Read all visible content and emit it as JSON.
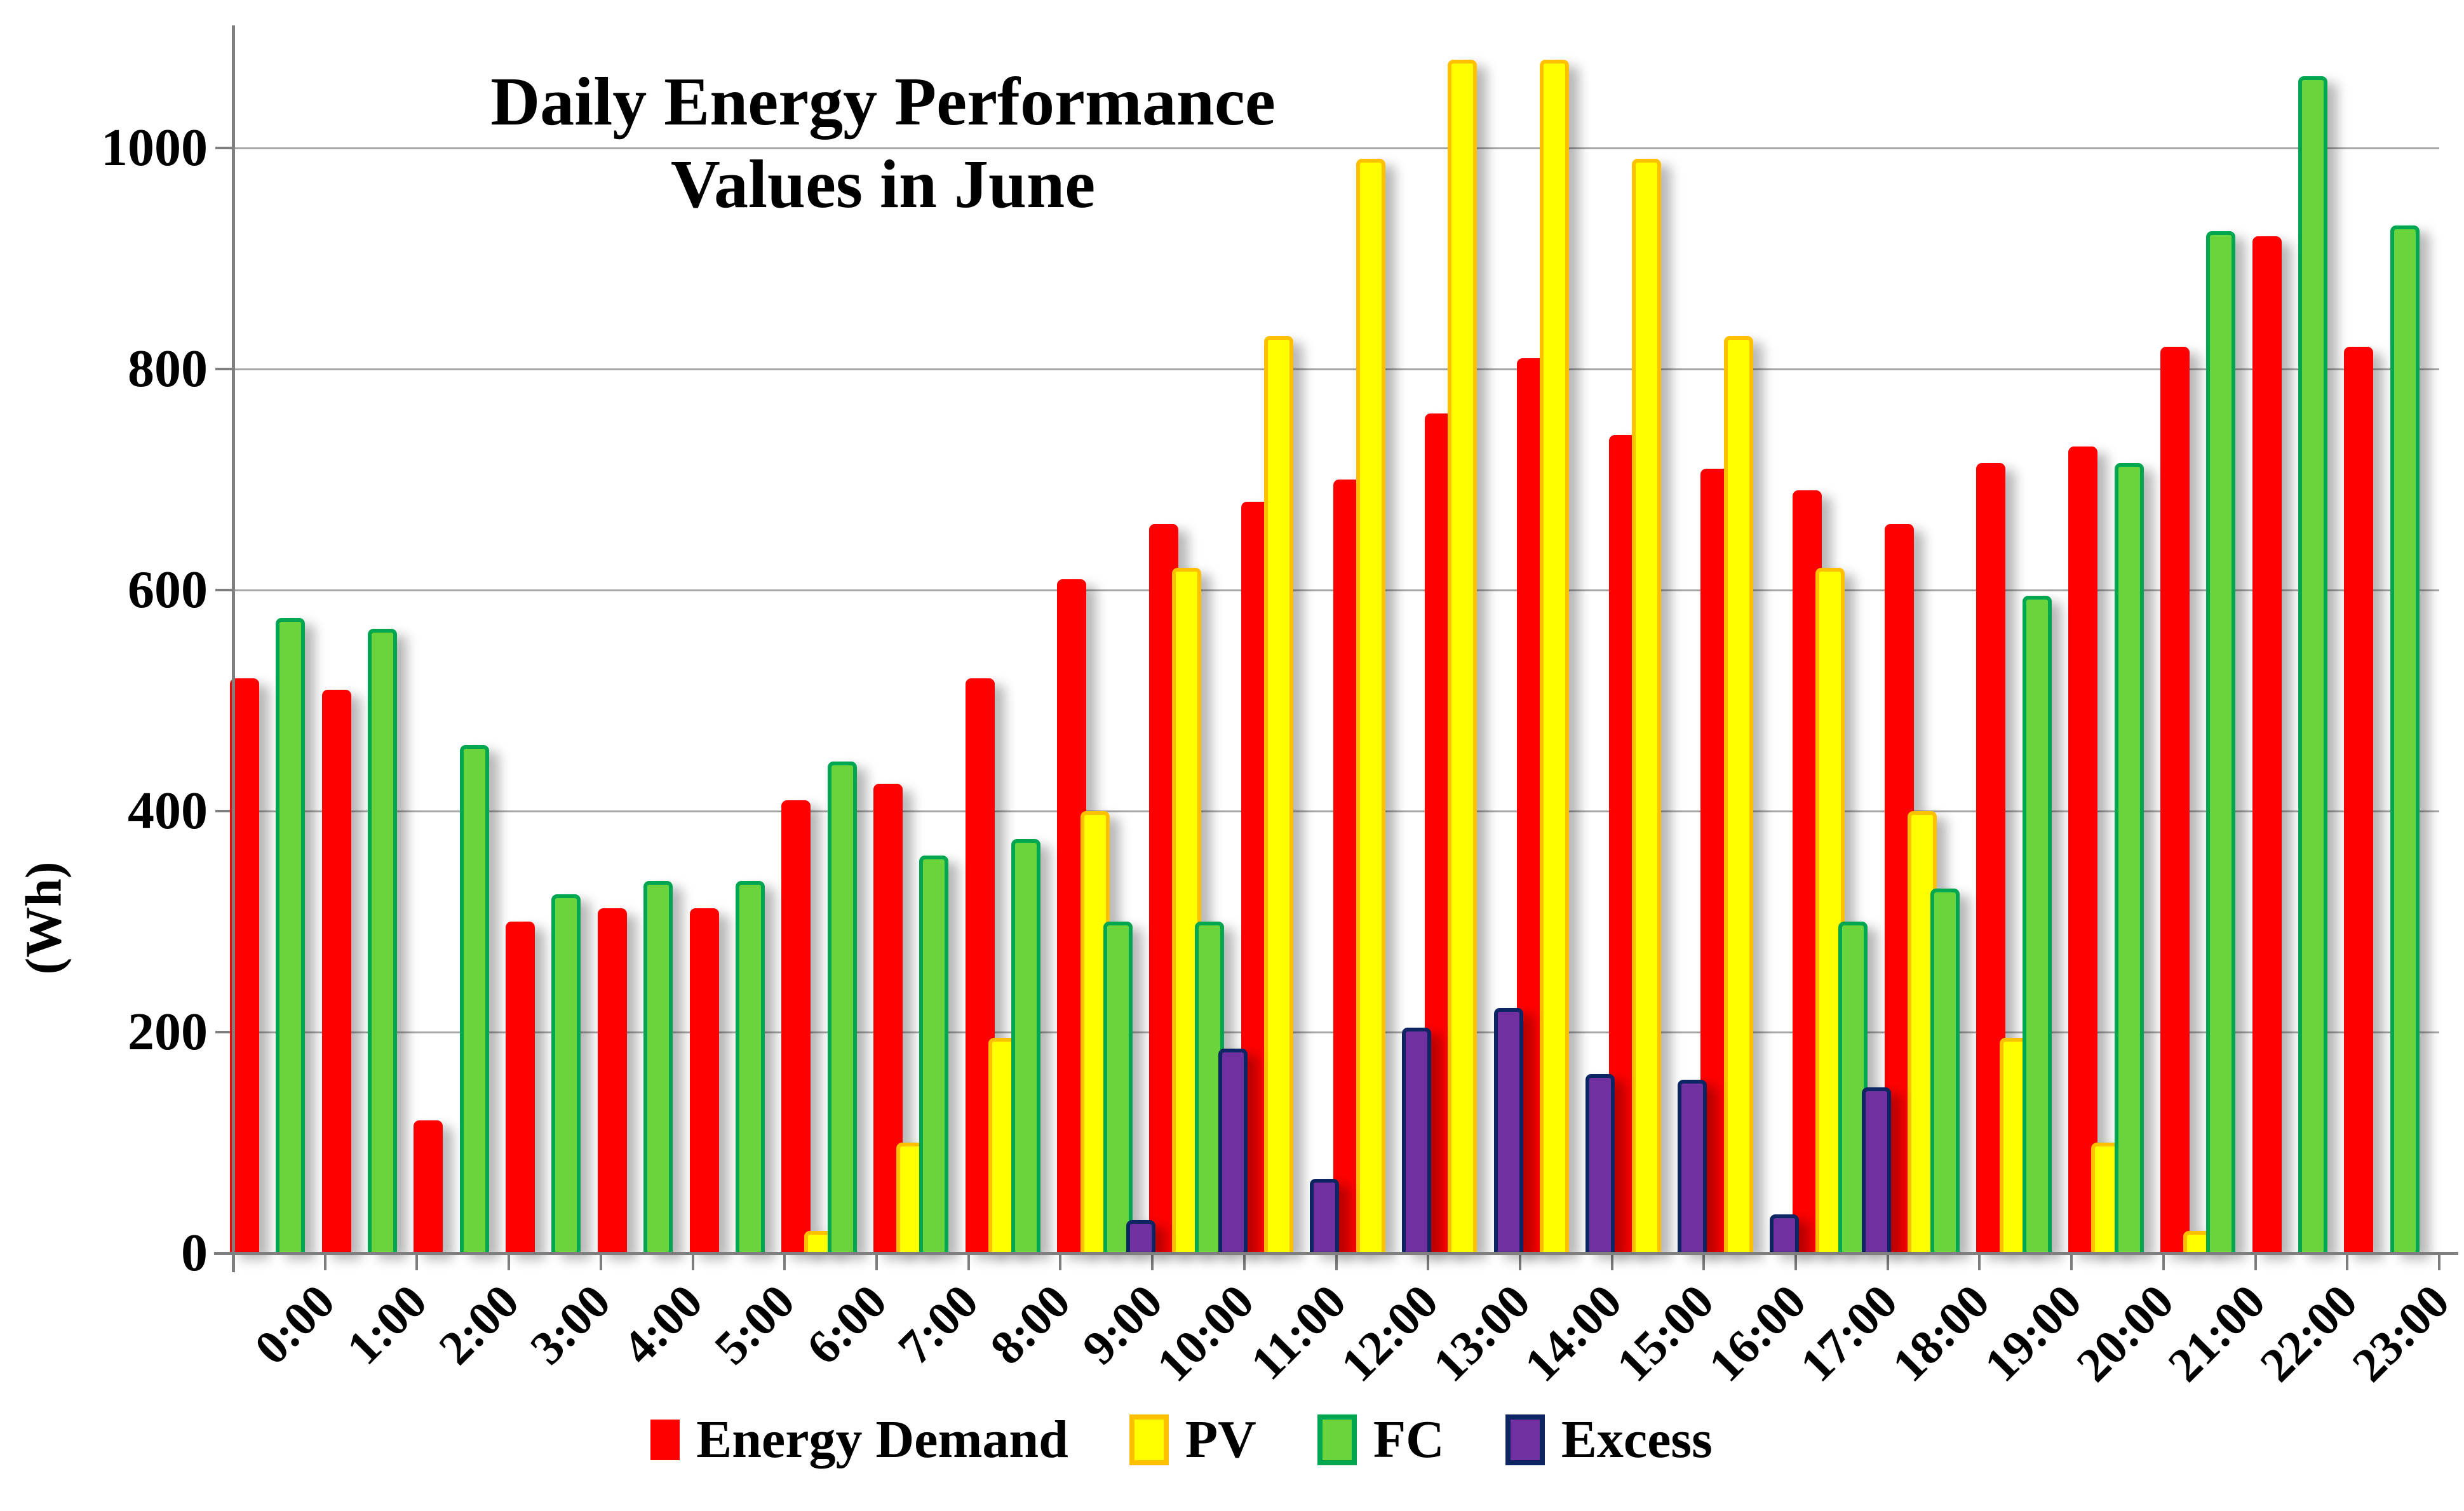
{
  "title": {
    "line1": "Daily Energy Performance",
    "line2": "Values in June"
  },
  "y_axis": {
    "label": "(Wh)",
    "tick_labels": [
      "0",
      "200",
      "400",
      "600",
      "800",
      "1000"
    ],
    "tick_values": [
      0,
      200,
      400,
      600,
      800,
      1000
    ]
  },
  "chart_data": {
    "type": "bar",
    "title": "Daily Energy Performance Values in June",
    "xlabel": "",
    "ylabel": "(Wh)",
    "ylim": [
      0,
      1100
    ],
    "grid": "horizontal",
    "legend_position": "bottom",
    "categories": [
      "0:00",
      "1:00",
      "2:00",
      "3:00",
      "4:00",
      "5:00",
      "6:00",
      "7:00",
      "8:00",
      "9:00",
      "10:00",
      "11:00",
      "12:00",
      "13:00",
      "14:00",
      "15:00",
      "16:00",
      "17:00",
      "18:00",
      "19:00",
      "20:00",
      "21:00",
      "22:00",
      "23:00"
    ],
    "series": [
      {
        "name": "Energy Demand",
        "color": "#fe0000",
        "border": null,
        "values": [
          520,
          510,
          120,
          300,
          312,
          312,
          410,
          425,
          520,
          610,
          660,
          680,
          700,
          760,
          810,
          740,
          710,
          690,
          660,
          715,
          730,
          820,
          920,
          820
        ]
      },
      {
        "name": "PV",
        "color": "#ffff00",
        "border": "#ffc000",
        "values": [
          0,
          0,
          0,
          0,
          0,
          0,
          20,
          100,
          195,
          400,
          620,
          830,
          990,
          1080,
          1080,
          990,
          830,
          620,
          400,
          195,
          100,
          20,
          0,
          0
        ]
      },
      {
        "name": "FC",
        "color": "#6bd33c",
        "border": "#00a650",
        "values": [
          575,
          565,
          460,
          325,
          337,
          337,
          445,
          360,
          375,
          300,
          300,
          0,
          0,
          0,
          0,
          0,
          0,
          300,
          330,
          595,
          715,
          925,
          1065,
          930
        ]
      },
      {
        "name": "Excess",
        "color": "#7030a0",
        "border": "#0d2563",
        "values": [
          0,
          0,
          0,
          0,
          0,
          0,
          0,
          0,
          0,
          30,
          185,
          67,
          204,
          222,
          162,
          157,
          35,
          150,
          0,
          0,
          0,
          0,
          0,
          0
        ]
      }
    ]
  },
  "colors": {
    "gridline": "#a6a6a6",
    "axis": "#7f7f7f",
    "background": "#ffffff"
  }
}
